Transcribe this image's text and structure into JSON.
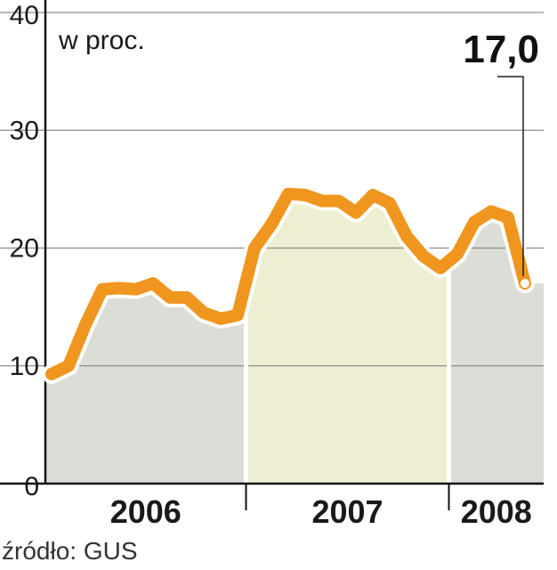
{
  "chart_data": {
    "type": "area",
    "unit_label": "w proc.",
    "source": "źródło: GUS",
    "y_ticks": [
      "0",
      "10",
      "20",
      "30",
      "40"
    ],
    "ylim": [
      0,
      40
    ],
    "years": [
      {
        "label": "2006",
        "months": 12
      },
      {
        "label": "2007",
        "months": 12
      },
      {
        "label": "2008",
        "months": 5
      }
    ],
    "values": [
      9.3,
      10.0,
      13.5,
      16.5,
      16.6,
      16.5,
      17.0,
      15.8,
      15.8,
      14.5,
      14.0,
      14.3,
      20.0,
      22.0,
      24.6,
      24.5,
      24.0,
      24.0,
      23.0,
      24.5,
      23.8,
      21.0,
      19.3,
      18.3,
      19.5,
      22.2,
      23.1,
      22.6,
      17.0
    ],
    "callout": "17,0",
    "grid": true,
    "colors": {
      "line": "#F0961E",
      "area_default": "#DDDDD8",
      "area_2007": "#EEEFD2",
      "gridline": "#8C8C8C"
    }
  }
}
